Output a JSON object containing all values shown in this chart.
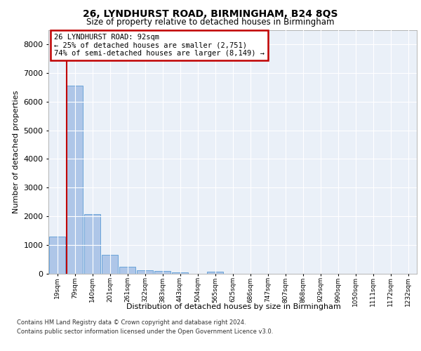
{
  "title1": "26, LYNDHURST ROAD, BIRMINGHAM, B24 8QS",
  "title2": "Size of property relative to detached houses in Birmingham",
  "xlabel": "Distribution of detached houses by size in Birmingham",
  "ylabel": "Number of detached properties",
  "bar_labels": [
    "19sqm",
    "79sqm",
    "140sqm",
    "201sqm",
    "261sqm",
    "322sqm",
    "383sqm",
    "443sqm",
    "504sqm",
    "565sqm",
    "625sqm",
    "686sqm",
    "747sqm",
    "807sqm",
    "868sqm",
    "929sqm",
    "990sqm",
    "1050sqm",
    "1111sqm",
    "1172sqm",
    "1232sqm"
  ],
  "bar_heights": [
    1300,
    6550,
    2080,
    650,
    255,
    130,
    100,
    60,
    5,
    70,
    5,
    5,
    5,
    5,
    5,
    5,
    5,
    5,
    5,
    5,
    5
  ],
  "bar_color": "#aec6e8",
  "bar_edge_color": "#5b9bd5",
  "highlight_bar_index": 1,
  "highlight_color": "#c00000",
  "annotation_title": "26 LYNDHURST ROAD: 92sqm",
  "annotation_line1": "← 25% of detached houses are smaller (2,751)",
  "annotation_line2": "74% of semi-detached houses are larger (8,149) →",
  "annotation_box_color": "#c00000",
  "ylim": [
    0,
    8500
  ],
  "yticks": [
    0,
    1000,
    2000,
    3000,
    4000,
    5000,
    6000,
    7000,
    8000
  ],
  "plot_bg_color": "#eaf0f8",
  "footer1": "Contains HM Land Registry data © Crown copyright and database right 2024.",
  "footer2": "Contains public sector information licensed under the Open Government Licence v3.0."
}
